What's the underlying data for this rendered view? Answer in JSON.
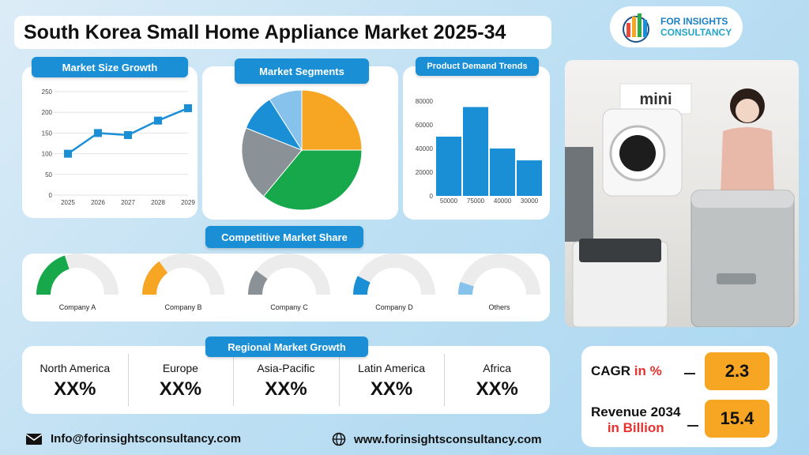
{
  "title": "South Korea Small Home Appliance Market 2025-34",
  "logo": {
    "line1": "FOR INSIGHTS",
    "line2": "CONSULTANCY",
    "bar_colors": [
      "#e84c3d",
      "#f6a623",
      "#2eaa4a",
      "#1a8fd6"
    ]
  },
  "panels": {
    "size_growth": "Market Size Growth",
    "segments": "Market Segments",
    "demand": "Product Demand Trends",
    "competitive": "Competitive Market Share",
    "regional": "Regional Market Growth"
  },
  "chart_data": [
    {
      "type": "line",
      "title": "Market Size Growth",
      "x": [
        "2025",
        "2026",
        "2027",
        "2028",
        "2029"
      ],
      "y": [
        100,
        150,
        145,
        180,
        210
      ],
      "y_ticks": [
        0,
        50,
        100,
        150,
        200,
        250
      ],
      "ylim": [
        0,
        250
      ],
      "color": "#1a8fd6",
      "grid": true
    },
    {
      "type": "pie",
      "title": "Market Segments",
      "values": [
        25,
        36,
        20,
        10,
        9
      ],
      "colors": [
        "#f6a623",
        "#17a84b",
        "#8a9197",
        "#1a8fd6",
        "#86c2ec"
      ]
    },
    {
      "type": "bar",
      "title": "Product Demand Trends",
      "categories": [
        "50000",
        "75000",
        "40000",
        "30000"
      ],
      "values": [
        50000,
        75000,
        40000,
        30000
      ],
      "y_ticks": [
        "0",
        "20000",
        "40000",
        "60000",
        "80000"
      ],
      "ylim": [
        0,
        80000
      ],
      "color": "#1a8fd6"
    }
  ],
  "competitors": [
    {
      "name": "Company A",
      "share": 0.4,
      "color": "#17a84b"
    },
    {
      "name": "Company B",
      "share": 0.3,
      "color": "#f6a623"
    },
    {
      "name": "Company C",
      "share": 0.2,
      "color": "#8a9197"
    },
    {
      "name": "Company D",
      "share": 0.15,
      "color": "#1a8fd6"
    },
    {
      "name": "Others",
      "share": 0.1,
      "color": "#86c2ec"
    }
  ],
  "regions": [
    {
      "name": "North America",
      "value": "XX%"
    },
    {
      "name": "Europe",
      "value": "XX%"
    },
    {
      "name": "Asia-Pacific",
      "value": "XX%"
    },
    {
      "name": "Latin America",
      "value": "XX%"
    },
    {
      "name": "Africa",
      "value": "XX%"
    }
  ],
  "photo": {
    "sign_text": "mini"
  },
  "kpis": {
    "cagr_label": "CAGR",
    "cagr_unit": "in %",
    "cagr_value": "2.3",
    "revenue_label": "Revenue 2034",
    "revenue_unit": "in Billion",
    "revenue_value": "15.4",
    "accent": "#e8312f"
  },
  "footer": {
    "email": "Info@forinsightsconsultancy.com",
    "website": "www.forinsightsconsultancy.com"
  }
}
